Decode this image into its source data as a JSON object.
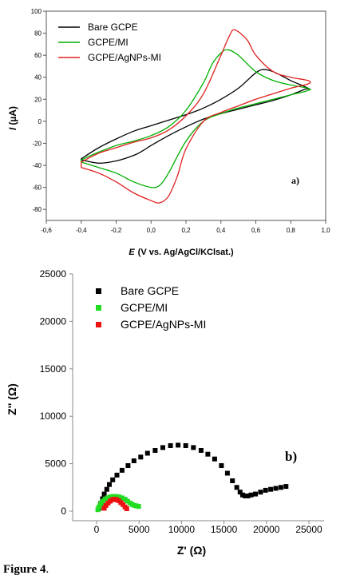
{
  "chart_data": [
    {
      "type": "line",
      "panel_label": "a)",
      "xlabel_prefix": "E",
      "xlabel": "(V vs. Ag/AgCl/KClsat.)",
      "ylabel_prefix": "I",
      "ylabel": "(µA)",
      "xlim": [
        -0.6,
        1.0
      ],
      "ylim": [
        -90,
        100
      ],
      "xticks": [
        "-0,6",
        "-0,4",
        "-0,2",
        "0,0",
        "0,2",
        "0,4",
        "0,6",
        "0,8",
        "1,0"
      ],
      "xtick_values": [
        -0.6,
        -0.4,
        -0.2,
        0.0,
        0.2,
        0.4,
        0.6,
        0.8,
        1.0
      ],
      "yticks": [
        "-80",
        "-60",
        "-40",
        "-20",
        "0",
        "20",
        "40",
        "60",
        "80",
        "100"
      ],
      "ytick_values": [
        -80,
        -60,
        -40,
        -20,
        0,
        20,
        40,
        60,
        80,
        100
      ],
      "legend_position": "top-left",
      "series": [
        {
          "name": "Bare GCPE",
          "color": "#000000",
          "x": [
            -0.4,
            -0.3,
            -0.2,
            -0.1,
            0.0,
            0.1,
            0.2,
            0.3,
            0.4,
            0.5,
            0.55,
            0.6,
            0.64,
            0.7,
            0.8,
            0.9,
            0.88,
            0.8,
            0.7,
            0.6,
            0.5,
            0.4,
            0.3,
            0.2,
            0.1,
            0.0,
            -0.05,
            -0.1,
            -0.2,
            -0.3,
            -0.4
          ],
          "y": [
            -34,
            -24,
            -16,
            -9,
            -4,
            1,
            6,
            12,
            20,
            30,
            37,
            44,
            47,
            45,
            37,
            30,
            29,
            24,
            19,
            15,
            11,
            7,
            2,
            -5,
            -13,
            -22,
            -27,
            -31,
            -36,
            -38,
            -35
          ]
        },
        {
          "name": "GCPE/MI",
          "color": "#00b000",
          "x": [
            -0.4,
            -0.3,
            -0.2,
            -0.1,
            0.0,
            0.1,
            0.2,
            0.3,
            0.35,
            0.4,
            0.44,
            0.5,
            0.6,
            0.7,
            0.8,
            0.9,
            0.9,
            0.8,
            0.7,
            0.6,
            0.5,
            0.4,
            0.3,
            0.2,
            0.1,
            0.05,
            0.0,
            -0.1,
            -0.2,
            -0.3,
            -0.4
          ],
          "y": [
            -35,
            -28,
            -22,
            -18,
            -13,
            -5,
            10,
            35,
            52,
            62,
            65,
            60,
            45,
            37,
            33,
            30,
            28,
            24,
            20,
            16,
            12,
            7,
            0,
            -18,
            -47,
            -58,
            -60,
            -55,
            -47,
            -42,
            -37
          ]
        },
        {
          "name": "GCPE/AgNPs-MI",
          "color": "#e02020",
          "x": [
            -0.4,
            -0.3,
            -0.2,
            -0.1,
            0.0,
            0.1,
            0.2,
            0.3,
            0.4,
            0.45,
            0.48,
            0.55,
            0.6,
            0.7,
            0.8,
            0.9,
            0.9,
            0.8,
            0.7,
            0.6,
            0.5,
            0.4,
            0.3,
            0.2,
            0.15,
            0.1,
            0.05,
            0.0,
            -0.1,
            -0.2,
            -0.3,
            -0.4
          ],
          "y": [
            -37,
            -29,
            -24,
            -19,
            -15,
            -8,
            5,
            25,
            60,
            78,
            83,
            74,
            60,
            45,
            40,
            37,
            34,
            30,
            25,
            20,
            14,
            8,
            0,
            -25,
            -50,
            -68,
            -74,
            -72,
            -65,
            -55,
            -47,
            -42
          ]
        }
      ]
    },
    {
      "type": "scatter",
      "panel_label": "b)",
      "xlabel": "Z' (Ω)",
      "ylabel": "Z'' (Ω)",
      "xlim": [
        -2500,
        25000
      ],
      "ylim": [
        -1000,
        25000
      ],
      "xticks": [
        "0",
        "5000",
        "10000",
        "15000",
        "20000",
        "25000"
      ],
      "xtick_values": [
        0,
        5000,
        10000,
        15000,
        20000,
        25000
      ],
      "yticks": [
        "0",
        "5000",
        "10000",
        "15000",
        "20000",
        "25000"
      ],
      "ytick_values": [
        0,
        5000,
        10000,
        15000,
        20000,
        25000
      ],
      "legend_position": "top-left",
      "series": [
        {
          "name": "Bare GCPE",
          "color": "#000000",
          "x": [
            300,
            500,
            700,
            900,
            1200,
            1500,
            1900,
            2400,
            3000,
            3700,
            4400,
            5200,
            6000,
            6900,
            7800,
            8700,
            9600,
            10500,
            11400,
            12300,
            13100,
            13900,
            14700,
            15400,
            16000,
            16500,
            16900,
            17200,
            17500,
            17800,
            18200,
            18700,
            19300,
            19900,
            20500,
            21100,
            21700,
            22300
          ],
          "y": [
            300,
            800,
            1300,
            1800,
            2300,
            2800,
            3300,
            3800,
            4300,
            4800,
            5300,
            5700,
            6100,
            6400,
            6700,
            6900,
            6950,
            6900,
            6700,
            6400,
            6000,
            5500,
            4800,
            4000,
            3200,
            2500,
            2000,
            1700,
            1600,
            1600,
            1700,
            1800,
            2000,
            2200,
            2300,
            2400,
            2500,
            2600
          ]
        },
        {
          "name": "GCPE/MI",
          "color": "#22dd22",
          "x": [
            150,
            250,
            400,
            550,
            750,
            1000,
            1300,
            1600,
            1950,
            2300,
            2650,
            3000,
            3350,
            3650,
            3950,
            4200,
            4450,
            4700,
            4950
          ],
          "y": [
            150,
            400,
            650,
            850,
            1050,
            1250,
            1400,
            1500,
            1550,
            1550,
            1500,
            1400,
            1250,
            1050,
            850,
            700,
            600,
            550,
            500
          ]
        },
        {
          "name": "GCPE/AgNPs-MI",
          "color": "#ee1111",
          "x": [
            900,
            1100,
            1350,
            1600,
            1850,
            2100,
            2350,
            2600,
            2850,
            3100,
            3350,
            3550
          ],
          "y": [
            300,
            600,
            850,
            1050,
            1200,
            1250,
            1200,
            1100,
            900,
            700,
            450,
            250
          ]
        }
      ]
    }
  ],
  "caption": {
    "bold": "Figure  4",
    "tail": "."
  }
}
